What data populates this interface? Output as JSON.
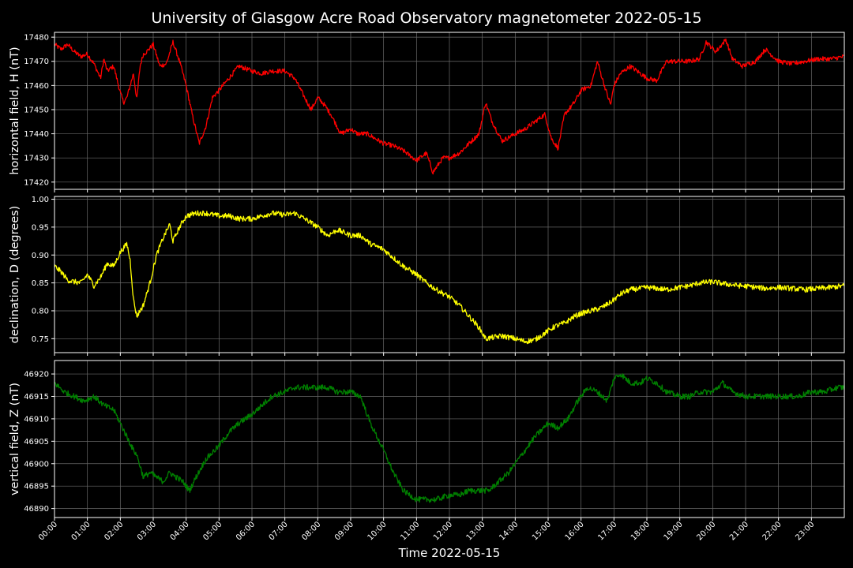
{
  "title": "University of Glasgow Acre Road Observatory magnetometer 2022-05-15",
  "xlabel": "Time 2022-05-15",
  "x_ticks": [
    "00:00",
    "01:00",
    "02:00",
    "03:00",
    "04:00",
    "05:00",
    "06:00",
    "07:00",
    "08:00",
    "09:00",
    "10:00",
    "11:00",
    "12:00",
    "13:00",
    "14:00",
    "15:00",
    "16:00",
    "17:00",
    "18:00",
    "19:00",
    "20:00",
    "21:00",
    "22:00",
    "23:00"
  ],
  "colors": {
    "background": "#000000",
    "grid": "#6a6a6a",
    "axes": "#ffffff",
    "H": "#ff0000",
    "D": "#ffff00",
    "Z": "#008000"
  },
  "chart_data": [
    {
      "type": "line",
      "ylabel": "horizontal field, H (nT)",
      "ylim": [
        17417,
        17482
      ],
      "xlim": [
        0,
        24
      ],
      "y_ticks": [
        "17420",
        "17430",
        "17440",
        "17450",
        "17460",
        "17470",
        "17480"
      ],
      "series": [
        {
          "color": "#ff0000",
          "noise": 1.2,
          "x": [
            0,
            0.2,
            0.4,
            0.6,
            0.8,
            1.0,
            1.2,
            1.4,
            1.5,
            1.6,
            1.8,
            2.0,
            2.1,
            2.2,
            2.4,
            2.5,
            2.6,
            2.7,
            2.8,
            3.0,
            3.2,
            3.4,
            3.6,
            3.8,
            4.0,
            4.2,
            4.4,
            4.6,
            4.8,
            5.0,
            5.3,
            5.6,
            6.0,
            6.3,
            6.6,
            7.0,
            7.3,
            7.6,
            7.8,
            8.0,
            8.2,
            8.4,
            8.7,
            9.0,
            9.2,
            9.5,
            10.0,
            10.3,
            10.6,
            11.0,
            11.3,
            11.5,
            11.8,
            12.0,
            12.3,
            12.6,
            12.9,
            13.1,
            13.3,
            13.6,
            14.0,
            14.3,
            14.6,
            14.9,
            15.1,
            15.3,
            15.5,
            15.8,
            16.0,
            16.3,
            16.5,
            16.6,
            16.8,
            16.9,
            17.0,
            17.2,
            17.5,
            17.8,
            18.0,
            18.3,
            18.6,
            19.0,
            19.3,
            19.6,
            19.8,
            20.1,
            20.4,
            20.6,
            20.9,
            21.3,
            21.6,
            22.0,
            22.4,
            22.8,
            23.2,
            23.6,
            24.0
          ],
          "values": [
            17477,
            17475,
            17477,
            17474,
            17472,
            17473,
            17469,
            17463,
            17471,
            17466,
            17468,
            17457,
            17453,
            17455,
            17465,
            17454,
            17468,
            17473,
            17474,
            17477,
            17468,
            17469,
            17478,
            17470,
            17460,
            17447,
            17436,
            17443,
            17455,
            17458,
            17463,
            17468,
            17466,
            17465,
            17466,
            17466,
            17463,
            17455,
            17450,
            17455,
            17452,
            17448,
            17440,
            17442,
            17440,
            17440,
            17436,
            17435,
            17433,
            17429,
            17432,
            17424,
            17430,
            17430,
            17432,
            17436,
            17440,
            17453,
            17445,
            17437,
            17440,
            17442,
            17445,
            17448,
            17438,
            17434,
            17448,
            17453,
            17458,
            17460,
            17470,
            17465,
            17456,
            17452,
            17460,
            17465,
            17468,
            17465,
            17463,
            17462,
            17470,
            17470,
            17470,
            17471,
            17478,
            17474,
            17479,
            17471,
            17468,
            17470,
            17475,
            17470,
            17469,
            17470,
            17471,
            17471,
            17472
          ]
        }
      ]
    },
    {
      "type": "line",
      "ylabel": "declination, D (degrees)",
      "ylim": [
        0.725,
        1.005
      ],
      "xlim": [
        0,
        24
      ],
      "y_ticks": [
        "0.75",
        "0.80",
        "0.85",
        "0.90",
        "0.95",
        "1.00"
      ],
      "series": [
        {
          "color": "#ffff00",
          "noise": 0.006,
          "x": [
            0,
            0.2,
            0.4,
            0.6,
            0.8,
            1.0,
            1.2,
            1.4,
            1.6,
            1.8,
            2.0,
            2.2,
            2.3,
            2.4,
            2.5,
            2.7,
            2.9,
            3.1,
            3.3,
            3.5,
            3.6,
            3.8,
            4.0,
            4.3,
            4.6,
            5.0,
            5.3,
            5.6,
            6.0,
            6.3,
            6.6,
            7.0,
            7.3,
            7.6,
            8.0,
            8.3,
            8.6,
            9.0,
            9.3,
            9.6,
            10.0,
            10.3,
            10.6,
            11.0,
            11.3,
            11.6,
            12.0,
            12.3,
            12.6,
            12.9,
            13.1,
            13.3,
            13.6,
            14.0,
            14.3,
            14.6,
            14.9,
            15.2,
            15.5,
            15.8,
            16.0,
            16.3,
            16.6,
            16.9,
            17.2,
            17.5,
            17.8,
            18.0,
            18.3,
            18.6,
            19.0,
            19.3,
            19.6,
            20.0,
            20.4,
            20.8,
            21.2,
            21.6,
            22.0,
            22.4,
            22.8,
            23.2,
            23.6,
            24.0
          ],
          "values": [
            0.88,
            0.87,
            0.855,
            0.852,
            0.85,
            0.865,
            0.845,
            0.86,
            0.885,
            0.88,
            0.905,
            0.92,
            0.89,
            0.82,
            0.79,
            0.81,
            0.85,
            0.9,
            0.93,
            0.955,
            0.925,
            0.95,
            0.97,
            0.975,
            0.975,
            0.97,
            0.97,
            0.965,
            0.965,
            0.97,
            0.975,
            0.972,
            0.975,
            0.965,
            0.95,
            0.935,
            0.945,
            0.935,
            0.935,
            0.92,
            0.91,
            0.895,
            0.88,
            0.865,
            0.85,
            0.838,
            0.825,
            0.81,
            0.79,
            0.77,
            0.75,
            0.752,
            0.755,
            0.75,
            0.745,
            0.748,
            0.76,
            0.772,
            0.778,
            0.79,
            0.795,
            0.8,
            0.805,
            0.815,
            0.83,
            0.838,
            0.84,
            0.842,
            0.84,
            0.838,
            0.842,
            0.845,
            0.85,
            0.852,
            0.848,
            0.845,
            0.843,
            0.84,
            0.842,
            0.84,
            0.838,
            0.84,
            0.842,
            0.845
          ]
        }
      ]
    },
    {
      "type": "line",
      "ylabel": "vertical field, Z (nT)",
      "ylim": [
        46888,
        46923
      ],
      "xlim": [
        0,
        24
      ],
      "y_ticks": [
        "46890",
        "46895",
        "46900",
        "46905",
        "46910",
        "46915",
        "46920"
      ],
      "series": [
        {
          "color": "#008000",
          "noise": 0.8,
          "x": [
            0,
            0.3,
            0.6,
            0.9,
            1.2,
            1.5,
            1.8,
            2.0,
            2.2,
            2.4,
            2.5,
            2.7,
            2.9,
            3.1,
            3.3,
            3.5,
            3.7,
            3.9,
            4.1,
            4.3,
            4.6,
            5.0,
            5.3,
            5.6,
            6.0,
            6.3,
            6.6,
            7.0,
            7.3,
            7.6,
            8.0,
            8.3,
            8.6,
            9.0,
            9.3,
            9.6,
            10.0,
            10.3,
            10.6,
            11.0,
            11.3,
            11.6,
            12.0,
            12.3,
            12.6,
            12.9,
            13.2,
            13.5,
            13.8,
            14.0,
            14.3,
            14.6,
            15.0,
            15.3,
            15.6,
            15.9,
            16.2,
            16.5,
            16.8,
            17.0,
            17.2,
            17.5,
            17.8,
            18.0,
            18.3,
            18.6,
            19.0,
            19.3,
            19.6,
            20.0,
            20.3,
            20.6,
            21.0,
            21.4,
            21.8,
            22.2,
            22.6,
            23.0,
            23.4,
            23.8,
            24.0
          ],
          "values": [
            46918,
            46916,
            46915,
            46914,
            46915,
            46913,
            46912,
            46909,
            46906,
            46903,
            46902,
            46897,
            46898,
            46897,
            46896,
            46898,
            46897,
            46896,
            46894,
            46897,
            46901,
            46904,
            46907,
            46909,
            46911,
            46913,
            46915,
            46916,
            46917,
            46917,
            46917,
            46917,
            46916,
            46916,
            46915,
            46909,
            46903,
            46898,
            46894,
            46892,
            46892,
            46892,
            46893,
            46893,
            46894,
            46894,
            46894,
            46896,
            46898,
            46900,
            46903,
            46906,
            46909,
            46908,
            46910,
            46914,
            46917,
            46916,
            46914,
            46919,
            46920,
            46918,
            46918,
            46919,
            46918,
            46916,
            46915,
            46915,
            46916,
            46916,
            46918,
            46916,
            46915,
            46915,
            46915,
            46915,
            46915,
            46916,
            46916,
            46917,
            46917
          ]
        }
      ]
    }
  ]
}
